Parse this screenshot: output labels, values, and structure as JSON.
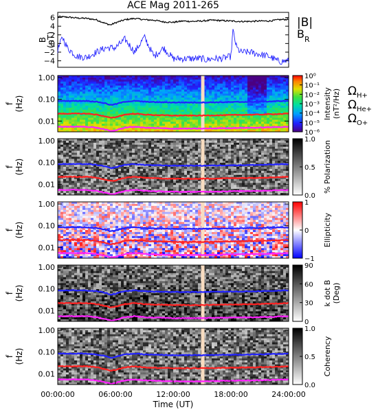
{
  "title": "ACE Mag 2011-265",
  "time_axis": {
    "label": "Time (UT)",
    "ticks": [
      "00:00:00",
      "06:00:00",
      "12:00:00",
      "18:00:00",
      "24:00:00"
    ]
  },
  "legend_top": {
    "b_total": "|B|",
    "b_r_main": "B",
    "b_r_sub": "R",
    "b_total_color": "#000000",
    "b_r_color": "#2222ff"
  },
  "legend_gyro": [
    {
      "symbol": "Ω",
      "sub": "H+",
      "color": "#2222ff"
    },
    {
      "symbol": "Ω",
      "sub": "He+",
      "color": "#ff2222"
    },
    {
      "symbol": "Ω",
      "sub": "O+",
      "color": "#ff22ff"
    }
  ],
  "freq_axis": {
    "ylabel_main": "f",
    "ylabel_unit": "(Hz)",
    "ticks": [
      "1.00",
      "0.10",
      "0.01"
    ]
  },
  "b_panel": {
    "ylabel_main": "B",
    "ylabel_unit": "(nT)",
    "ticks": [
      "6",
      "4",
      "2",
      "0",
      "−2",
      "−4"
    ]
  },
  "colorbars": [
    {
      "label": "Intensity",
      "unit": "(nT²/Hz)",
      "ticks": [
        "10⁰",
        "10⁻¹",
        "10⁻²",
        "10⁻³",
        "10⁻⁴",
        "10⁻⁵",
        "10⁻⁶"
      ],
      "scheme": "rainbow"
    },
    {
      "label": "% Polarization",
      "unit": "",
      "ticks": [
        "1.0",
        "0.5",
        "0.0"
      ],
      "scheme": "gray"
    },
    {
      "label": "Ellipticity",
      "unit": "",
      "ticks": [
        "1",
        "0",
        "−1"
      ],
      "scheme": "bwr"
    },
    {
      "label": "k dot B",
      "unit": "(Deg)",
      "ticks": [
        "90",
        "60",
        "30",
        "0"
      ],
      "scheme": "gray"
    },
    {
      "label": "Coherency",
      "unit": "",
      "ticks": [
        "1.0",
        "0.5",
        "0.0"
      ],
      "scheme": "gray"
    }
  ],
  "chart_data": [
    {
      "type": "line",
      "title": "ACE Mag 2011-265",
      "xlabel": "Time (UT)",
      "ylabel": "B (nT)",
      "xlim": [
        0,
        24
      ],
      "ylim": [
        -5.5,
        7.2
      ],
      "series": [
        {
          "name": "|B|",
          "color": "#000000",
          "x": [
            0,
            1,
            2,
            3,
            4,
            5,
            5.5,
            6,
            7,
            8,
            9,
            10,
            11,
            12,
            13,
            14,
            15,
            16,
            17,
            18,
            19,
            20,
            21,
            22,
            23,
            24
          ],
          "y": [
            6.2,
            6.1,
            5.9,
            5.8,
            5.5,
            4.6,
            4.3,
            4.8,
            5.5,
            5.8,
            5.5,
            5.4,
            5.0,
            4.9,
            5.2,
            5.1,
            5.2,
            5.4,
            5.3,
            5.2,
            5.1,
            5.1,
            5.2,
            5.2,
            5.5,
            5.6
          ]
        },
        {
          "name": "B",
          "color": "#2222ff",
          "x": [
            0,
            0.5,
            1,
            2,
            3,
            4,
            5,
            6,
            7,
            8,
            9,
            10,
            11,
            12,
            13,
            14,
            15,
            15.5,
            16,
            17,
            18,
            18.2,
            18.6,
            19,
            20,
            21,
            22,
            23,
            24
          ],
          "y": [
            -1.5,
            1.5,
            -1.0,
            -3.0,
            -3.2,
            -2.0,
            -1.0,
            -1.0,
            1.0,
            -2.0,
            1.5,
            -3.0,
            -1.0,
            -3.5,
            -3.5,
            -3.5,
            -3.5,
            -3.8,
            -3.5,
            -3.5,
            -3.0,
            3.0,
            -1.0,
            -2.0,
            -2.0,
            -2.5,
            -3.0,
            -4.2,
            -4.0
          ]
        }
      ]
    },
    {
      "type": "heatmap",
      "ylabel": "f (Hz)",
      "colorbar_label": "Intensity (nT²/Hz)",
      "ylim": [
        0.003,
        1.3
      ],
      "yscale": "log",
      "data_gap_hours": [
        14.9,
        15.25
      ],
      "series": [
        {
          "name": "ΩH+",
          "color": "#2222ff",
          "x": [
            0,
            3,
            4,
            5,
            5.5,
            6,
            7,
            8,
            9,
            10,
            12,
            15,
            18,
            21,
            24
          ],
          "y": [
            0.085,
            0.085,
            0.078,
            0.065,
            0.055,
            0.06,
            0.078,
            0.085,
            0.078,
            0.075,
            0.072,
            0.072,
            0.075,
            0.078,
            0.085
          ]
        },
        {
          "name": "ΩHe+",
          "color": "#ff2222",
          "x": [
            0,
            3,
            4,
            5,
            5.5,
            6,
            7,
            8,
            9,
            10,
            12,
            15,
            18,
            21,
            24
          ],
          "y": [
            0.022,
            0.022,
            0.02,
            0.016,
            0.014,
            0.015,
            0.02,
            0.022,
            0.02,
            0.019,
            0.018,
            0.018,
            0.019,
            0.02,
            0.022
          ]
        },
        {
          "name": "ΩO+",
          "color": "#ff22ff",
          "x": [
            0,
            3,
            4,
            5,
            5.5,
            6,
            7,
            8,
            9,
            10,
            12,
            15,
            18,
            21,
            24
          ],
          "y": [
            0.0055,
            0.0055,
            0.005,
            0.004,
            0.0035,
            0.0037,
            0.005,
            0.0055,
            0.005,
            0.0048,
            0.0045,
            0.0045,
            0.0048,
            0.005,
            0.0055
          ]
        }
      ]
    },
    {
      "type": "heatmap",
      "ylabel": "f (Hz)",
      "colorbar_label": "% Polarization",
      "zlim": [
        0,
        1
      ],
      "yscale": "log"
    },
    {
      "type": "heatmap",
      "ylabel": "f (Hz)",
      "colorbar_label": "Ellipticity",
      "zlim": [
        -1,
        1
      ],
      "yscale": "log"
    },
    {
      "type": "heatmap",
      "ylabel": "f (Hz)",
      "colorbar_label": "k dot B (Deg)",
      "zlim": [
        0,
        90
      ],
      "yscale": "log"
    },
    {
      "type": "heatmap",
      "ylabel": "f (Hz)",
      "colorbar_label": "Coherency",
      "zlim": [
        0,
        1
      ],
      "yscale": "log"
    }
  ]
}
